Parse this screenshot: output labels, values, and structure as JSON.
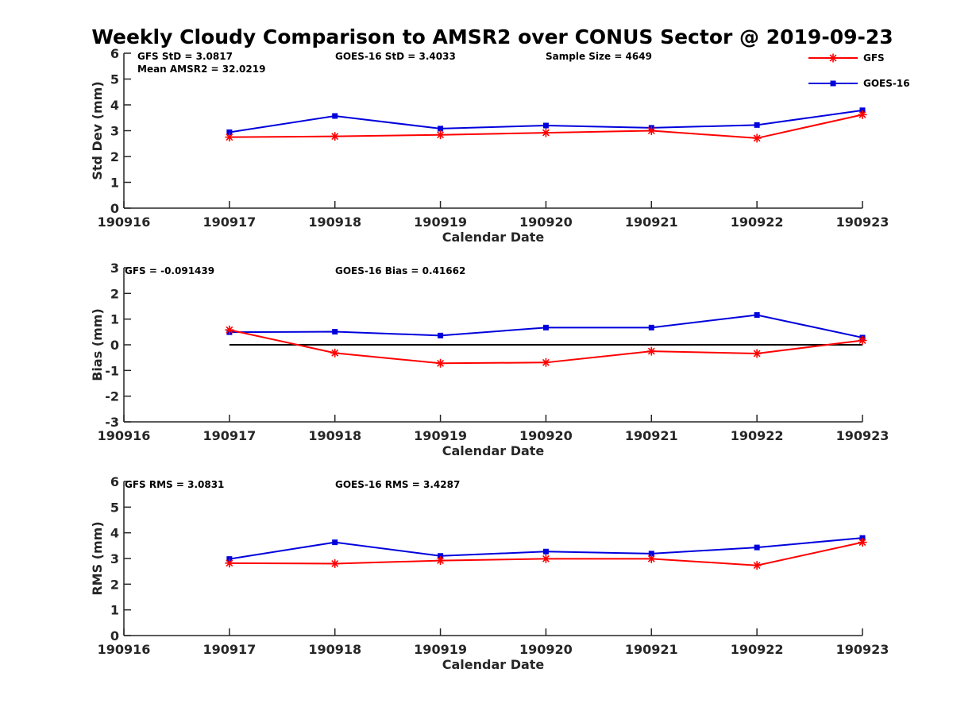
{
  "title": "Weekly Cloudy Comparison to AMSR2 over CONUS Sector @ 2019-09-23",
  "colors": {
    "gfs": "#ff0000",
    "goes": "#0000dd",
    "zero_line": "#000000",
    "axis": "#262626"
  },
  "legend": {
    "placement": "top-right",
    "entries": [
      "GFS",
      "GOES-16"
    ]
  },
  "chart_data": [
    {
      "type": "line",
      "id": "stddev",
      "ylabel": "Std Dev (mm)",
      "xlabel": "Calendar Date",
      "x_ticks": [
        "190916",
        "190917",
        "190918",
        "190919",
        "190920",
        "190921",
        "190922",
        "190923"
      ],
      "y_ticks": [
        "0",
        "1",
        "2",
        "3",
        "4",
        "5",
        "6"
      ],
      "ylim": [
        0,
        6
      ],
      "x": [
        "190917",
        "190918",
        "190919",
        "190920",
        "190921",
        "190922",
        "190923"
      ],
      "series": [
        {
          "name": "GFS",
          "values": [
            2.75,
            2.78,
            2.84,
            2.92,
            3.0,
            2.71,
            3.62
          ]
        },
        {
          "name": "GOES-16",
          "values": [
            2.94,
            3.57,
            3.08,
            3.2,
            3.11,
            3.22,
            3.79
          ]
        }
      ],
      "annotations": [
        "GFS StD = 3.0817",
        "Mean AMSR2 = 32.0219",
        "GOES-16 StD = 3.4033",
        "Sample Size = 4649"
      ]
    },
    {
      "type": "line",
      "id": "bias",
      "ylabel": "Bias (mm)",
      "xlabel": "Calendar Date",
      "x_ticks": [
        "190916",
        "190917",
        "190918",
        "190919",
        "190920",
        "190921",
        "190922",
        "190923"
      ],
      "y_ticks": [
        "-3",
        "-2",
        "-1",
        "0",
        "1",
        "2",
        "3"
      ],
      "ylim": [
        -3,
        3
      ],
      "x": [
        "190917",
        "190918",
        "190919",
        "190920",
        "190921",
        "190922",
        "190923"
      ],
      "zero_line": true,
      "series": [
        {
          "name": "GFS",
          "values": [
            0.58,
            -0.32,
            -0.72,
            -0.69,
            -0.25,
            -0.34,
            0.17
          ]
        },
        {
          "name": "GOES-16",
          "values": [
            0.49,
            0.51,
            0.36,
            0.67,
            0.67,
            1.16,
            0.28
          ]
        }
      ],
      "annotations": [
        "GFS = -0.091439",
        "GOES-16 Bias  = 0.41662"
      ]
    },
    {
      "type": "line",
      "id": "rms",
      "ylabel": "RMS (mm)",
      "xlabel": "Calendar Date",
      "x_ticks": [
        "190916",
        "190917",
        "190918",
        "190919",
        "190920",
        "190921",
        "190922",
        "190923"
      ],
      "y_ticks": [
        "0",
        "1",
        "2",
        "3",
        "4",
        "5",
        "6"
      ],
      "ylim": [
        0,
        6
      ],
      "x": [
        "190917",
        "190918",
        "190919",
        "190920",
        "190921",
        "190922",
        "190923"
      ],
      "series": [
        {
          "name": "GFS",
          "values": [
            2.82,
            2.8,
            2.92,
            2.99,
            2.99,
            2.73,
            3.63
          ]
        },
        {
          "name": "GOES-16",
          "values": [
            2.98,
            3.63,
            3.1,
            3.27,
            3.19,
            3.43,
            3.8
          ]
        }
      ],
      "annotations": [
        "GFS RMS = 3.0831",
        "GOES-16 RMS = 3.4287"
      ]
    }
  ]
}
